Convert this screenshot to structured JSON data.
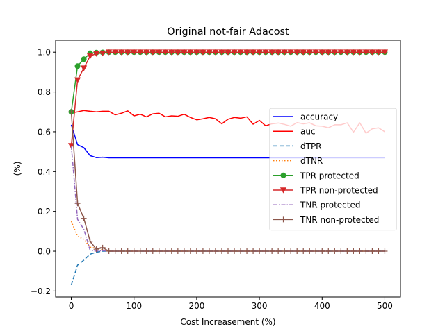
{
  "chart_data": {
    "type": "line",
    "title": "Original not-fair Adacost",
    "xlabel": "Cost Increasement (%)",
    "ylabel": "(%)",
    "xlim": [
      -25,
      525
    ],
    "ylim": [
      -0.23,
      1.06
    ],
    "xticks": [
      0,
      100,
      200,
      300,
      400,
      500
    ],
    "yticks": [
      -0.2,
      0.0,
      0.2,
      0.4,
      0.6,
      0.8,
      1.0
    ],
    "xtick_labels": [
      "0",
      "100",
      "200",
      "300",
      "400",
      "500"
    ],
    "ytick_labels": [
      "−0.2",
      "0.0",
      "0.2",
      "0.4",
      "0.6",
      "0.8",
      "1.0"
    ],
    "grid": false,
    "legend_position": "center-right",
    "x": [
      0,
      10,
      20,
      30,
      40,
      50,
      60,
      70,
      80,
      90,
      100,
      110,
      120,
      130,
      140,
      150,
      160,
      170,
      180,
      190,
      200,
      210,
      220,
      230,
      240,
      250,
      260,
      270,
      280,
      290,
      300,
      310,
      320,
      330,
      340,
      350,
      360,
      370,
      380,
      390,
      400,
      410,
      420,
      430,
      440,
      450,
      460,
      470,
      480,
      490,
      500
    ],
    "series": [
      {
        "name": "accuracy",
        "color": "#0000ff",
        "dash": "",
        "marker": "none",
        "values": [
          0.635,
          0.535,
          0.52,
          0.48,
          0.47,
          0.472,
          0.469,
          0.469,
          0.469,
          0.469,
          0.469,
          0.469,
          0.469,
          0.469,
          0.469,
          0.469,
          0.469,
          0.469,
          0.469,
          0.469,
          0.469,
          0.469,
          0.469,
          0.469,
          0.469,
          0.469,
          0.469,
          0.469,
          0.469,
          0.469,
          0.469,
          0.469,
          0.469,
          0.469,
          0.469,
          0.469,
          0.469,
          0.469,
          0.469,
          0.469,
          0.469,
          0.469,
          0.469,
          0.469,
          0.469,
          0.469,
          0.469,
          0.469,
          0.469,
          0.469,
          0.469
        ]
      },
      {
        "name": "auc",
        "color": "#ff0000",
        "dash": "",
        "marker": "none",
        "values": [
          0.695,
          0.7,
          0.707,
          0.703,
          0.7,
          0.703,
          0.703,
          0.685,
          0.693,
          0.705,
          0.68,
          0.688,
          0.675,
          0.69,
          0.693,
          0.675,
          0.68,
          0.678,
          0.688,
          0.672,
          0.66,
          0.665,
          0.672,
          0.665,
          0.64,
          0.663,
          0.672,
          0.668,
          0.675,
          0.638,
          0.657,
          0.63,
          0.64,
          0.644,
          0.637,
          0.628,
          0.646,
          0.64,
          0.645,
          0.63,
          0.628,
          0.62,
          0.635,
          0.635,
          0.645,
          0.598,
          0.645,
          0.593,
          0.615,
          0.62,
          0.6
        ]
      },
      {
        "name": "dTPR",
        "color": "#1f77b4",
        "dash": "6,3",
        "marker": "none",
        "values": [
          -0.17,
          -0.07,
          -0.045,
          -0.015,
          -0.005,
          0.0,
          0.0,
          0.0,
          0.0,
          0.0,
          0.0,
          0.0,
          0.0,
          0.0,
          0.0,
          0.0,
          0.0,
          0.0,
          0.0,
          0.0,
          0.0,
          0.0,
          0.0,
          0.0,
          0.0,
          0.0,
          0.0,
          0.0,
          0.0,
          0.0,
          0.0,
          0.0,
          0.0,
          0.0,
          0.0,
          0.0,
          0.0,
          0.0,
          0.0,
          0.0,
          0.0,
          0.0,
          0.0,
          0.0,
          0.0,
          0.0,
          0.0,
          0.0,
          0.0,
          0.0,
          0.0
        ]
      },
      {
        "name": "dTNR",
        "color": "#ff7f0e",
        "dash": "1.5,2.5",
        "marker": "none",
        "values": [
          0.15,
          0.075,
          0.06,
          0.02,
          0.015,
          0.005,
          0.0,
          0.0,
          0.0,
          0.0,
          0.0,
          0.0,
          0.0,
          0.0,
          0.0,
          0.0,
          0.0,
          0.0,
          0.0,
          0.0,
          0.0,
          0.0,
          0.0,
          0.0,
          0.0,
          0.0,
          0.0,
          0.0,
          0.0,
          0.0,
          0.0,
          0.0,
          0.0,
          0.0,
          0.0,
          0.0,
          0.0,
          0.0,
          0.0,
          0.0,
          0.0,
          0.0,
          0.0,
          0.0,
          0.0,
          0.0,
          0.0,
          0.0,
          0.0,
          0.0,
          0.0
        ]
      },
      {
        "name": "TPR protected",
        "color": "#2ca02c",
        "dash": "",
        "marker": "circle",
        "values": [
          0.7,
          0.93,
          0.965,
          0.995,
          0.998,
          0.999,
          1.0,
          1.0,
          1.0,
          1.0,
          1.0,
          1.0,
          1.0,
          1.0,
          1.0,
          1.0,
          1.0,
          1.0,
          1.0,
          1.0,
          1.0,
          1.0,
          1.0,
          1.0,
          1.0,
          1.0,
          1.0,
          1.0,
          1.0,
          1.0,
          1.0,
          1.0,
          1.0,
          1.0,
          1.0,
          1.0,
          1.0,
          1.0,
          1.0,
          1.0,
          1.0,
          1.0,
          1.0,
          1.0,
          1.0,
          1.0,
          1.0,
          1.0,
          1.0,
          1.0,
          1.0
        ]
      },
      {
        "name": "TPR non-protected",
        "color": "#d62728",
        "dash": "",
        "marker": "triangle-down",
        "values": [
          0.53,
          0.86,
          0.92,
          0.98,
          0.993,
          0.995,
          1.0,
          1.0,
          1.0,
          1.0,
          1.0,
          1.0,
          1.0,
          1.0,
          1.0,
          1.0,
          1.0,
          1.0,
          1.0,
          1.0,
          1.0,
          1.0,
          1.0,
          1.0,
          1.0,
          1.0,
          1.0,
          1.0,
          1.0,
          1.0,
          1.0,
          1.0,
          1.0,
          1.0,
          1.0,
          1.0,
          1.0,
          1.0,
          1.0,
          1.0,
          1.0,
          1.0,
          1.0,
          1.0,
          1.0,
          1.0,
          1.0,
          1.0,
          1.0,
          1.0,
          1.0
        ]
      },
      {
        "name": "TNR protected",
        "color": "#9467bd",
        "dash": "6,2,1.5,2",
        "marker": "none",
        "values": [
          0.53,
          0.16,
          0.11,
          0.005,
          0.0,
          0.003,
          0.0,
          0.0,
          0.0,
          0.0,
          0.0,
          0.0,
          0.0,
          0.0,
          0.0,
          0.0,
          0.0,
          0.0,
          0.0,
          0.0,
          0.0,
          0.0,
          0.0,
          0.0,
          0.0,
          0.0,
          0.0,
          0.0,
          0.0,
          0.0,
          0.0,
          0.0,
          0.0,
          0.0,
          0.0,
          0.0,
          0.0,
          0.0,
          0.0,
          0.0,
          0.0,
          0.0,
          0.0,
          0.0,
          0.0,
          0.0,
          0.0,
          0.0,
          0.0,
          0.0,
          0.0
        ]
      },
      {
        "name": "TNR non-protected",
        "color": "#8c564b",
        "dash": "",
        "marker": "plus",
        "values": [
          0.7,
          0.24,
          0.165,
          0.05,
          0.01,
          0.018,
          0.0,
          0.0,
          0.0,
          0.0,
          0.0,
          0.0,
          0.0,
          0.0,
          0.0,
          0.0,
          0.0,
          0.0,
          0.0,
          0.0,
          0.0,
          0.0,
          0.0,
          0.0,
          0.0,
          0.0,
          0.0,
          0.0,
          0.0,
          0.0,
          0.0,
          0.0,
          0.0,
          0.0,
          0.0,
          0.0,
          0.0,
          0.0,
          0.0,
          0.0,
          0.0,
          0.0,
          0.0,
          0.0,
          0.0,
          0.0,
          0.0,
          0.0,
          0.0,
          0.0,
          0.0
        ]
      }
    ]
  }
}
